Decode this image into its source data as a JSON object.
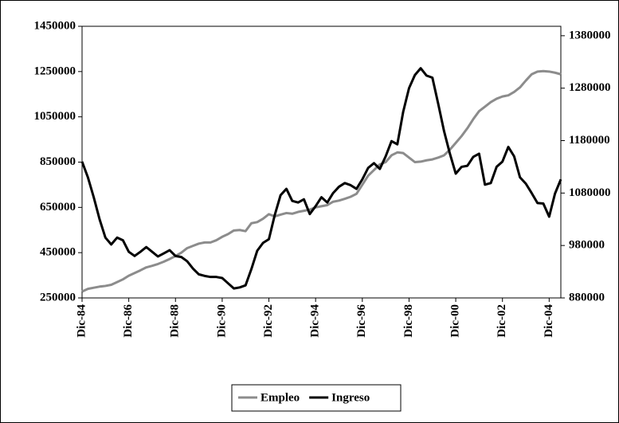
{
  "chart_data": {
    "type": "line",
    "categories": [
      "Dic-84",
      null,
      null,
      null,
      null,
      null,
      null,
      null,
      "Dic-86",
      null,
      null,
      null,
      null,
      null,
      null,
      null,
      "Dic-88",
      null,
      null,
      null,
      null,
      null,
      null,
      null,
      "Dic-90",
      null,
      null,
      null,
      null,
      null,
      null,
      null,
      "Dic-92",
      null,
      null,
      null,
      null,
      null,
      null,
      null,
      "Dic-94",
      null,
      null,
      null,
      null,
      null,
      null,
      null,
      "Dic-96",
      null,
      null,
      null,
      null,
      null,
      null,
      null,
      "Dic-98",
      null,
      null,
      null,
      null,
      null,
      null,
      null,
      "Dic-00",
      null,
      null,
      null,
      null,
      null,
      null,
      null,
      "Dic-02",
      null,
      null,
      null,
      null,
      null,
      null,
      null,
      "Dic-04",
      null,
      null
    ],
    "series": [
      {
        "name": "Empleo",
        "color": "#8c8c8c",
        "axis": "y",
        "values": [
          278000,
          290000,
          295000,
          300000,
          303000,
          308000,
          320000,
          332000,
          348000,
          360000,
          372000,
          385000,
          392000,
          400000,
          410000,
          422000,
          435000,
          450000,
          470000,
          480000,
          490000,
          495000,
          495000,
          505000,
          520000,
          532000,
          548000,
          550000,
          545000,
          580000,
          585000,
          600000,
          620000,
          610000,
          618000,
          625000,
          622000,
          630000,
          635000,
          640000,
          650000,
          655000,
          660000,
          675000,
          680000,
          688000,
          697000,
          710000,
          750000,
          790000,
          815000,
          840000,
          850000,
          880000,
          893000,
          890000,
          870000,
          850000,
          852000,
          858000,
          862000,
          870000,
          880000,
          905000,
          935000,
          965000,
          1000000,
          1040000,
          1075000,
          1095000,
          1115000,
          1130000,
          1140000,
          1145000,
          1160000,
          1180000,
          1210000,
          1238000,
          1250000,
          1252000,
          1250000,
          1245000,
          1238000
        ]
      },
      {
        "name": "Ingreso",
        "color": "#000000",
        "axis": "y2",
        "values": [
          1140000,
          1110000,
          1072000,
          1030000,
          995000,
          982000,
          995000,
          990000,
          968000,
          960000,
          968000,
          977000,
          968000,
          959000,
          965000,
          971000,
          960000,
          958000,
          950000,
          936000,
          925000,
          922000,
          920000,
          920000,
          918000,
          908000,
          898000,
          900000,
          904000,
          935000,
          970000,
          985000,
          992000,
          1038000,
          1076000,
          1088000,
          1065000,
          1062000,
          1068000,
          1040000,
          1055000,
          1072000,
          1062000,
          1080000,
          1092000,
          1099000,
          1095000,
          1088000,
          1106000,
          1128000,
          1137000,
          1126000,
          1150000,
          1179000,
          1173000,
          1235000,
          1280000,
          1305000,
          1318000,
          1304000,
          1300000,
          1250000,
          1198000,
          1155000,
          1117000,
          1130000,
          1132000,
          1149000,
          1155000,
          1096000,
          1099000,
          1130000,
          1140000,
          1168000,
          1150000,
          1110000,
          1098000,
          1080000,
          1061000,
          1060000,
          1035000,
          1079000,
          1106000
        ]
      }
    ],
    "ylim": [
      250000,
      1450000
    ],
    "yticks": [
      250000,
      450000,
      650000,
      850000,
      1050000,
      1250000,
      1450000
    ],
    "y2lim": [
      880000,
      1398000
    ],
    "y2ticks": [
      880000,
      980000,
      1080000,
      1180000,
      1280000,
      1380000
    ],
    "legend": "bottom"
  }
}
